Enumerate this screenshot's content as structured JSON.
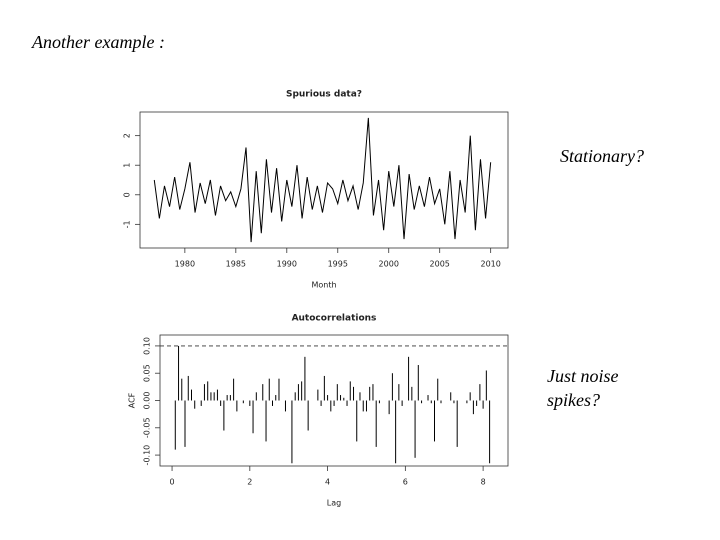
{
  "slide": {
    "heading": "Another example :",
    "note_top": "Stationary?",
    "note_bottom": [
      "Just noise",
      "spikes?"
    ]
  },
  "chart_data": [
    {
      "type": "line",
      "title": "Spurious data?",
      "x_label": "Month",
      "color": "#000000",
      "x": [
        1977,
        1977.5,
        1978,
        1978.5,
        1979,
        1979.5,
        1980,
        1980.5,
        1981,
        1981.5,
        1982,
        1982.5,
        1983,
        1983.5,
        1984,
        1984.5,
        1985,
        1985.5,
        1986,
        1986.5,
        1987,
        1987.5,
        1988,
        1988.5,
        1989,
        1989.5,
        1990,
        1990.5,
        1991,
        1991.5,
        1992,
        1992.5,
        1993,
        1993.5,
        1994,
        1994.5,
        1995,
        1995.5,
        1996,
        1996.5,
        1997,
        1997.5,
        1998,
        1998.5,
        1999,
        1999.5,
        2000,
        2000.5,
        2001,
        2001.5,
        2002,
        2002.5,
        2003,
        2003.5,
        2004,
        2004.5,
        2005,
        2005.5,
        2006,
        2006.5,
        2007,
        2007.5,
        2008,
        2008.5,
        2009,
        2009.5,
        2010
      ],
      "values": [
        0.5,
        -0.8,
        0.3,
        -0.4,
        0.6,
        -0.5,
        0.2,
        1.1,
        -0.6,
        0.4,
        -0.3,
        0.5,
        -0.7,
        0.3,
        -0.2,
        0.1,
        -0.4,
        0.2,
        1.6,
        -1.6,
        0.8,
        -1.3,
        1.2,
        -0.6,
        0.9,
        -0.9,
        0.5,
        -0.4,
        1.0,
        -0.8,
        0.6,
        -0.5,
        0.3,
        -0.6,
        0.4,
        0.2,
        -0.3,
        0.5,
        -0.2,
        0.3,
        -0.5,
        0.4,
        2.6,
        -0.7,
        0.5,
        -1.2,
        0.8,
        -0.4,
        1.0,
        -1.5,
        0.7,
        -0.5,
        0.3,
        -0.4,
        0.6,
        -0.3,
        0.2,
        -1.0,
        0.8,
        -1.5,
        0.5,
        -0.6,
        2.0,
        -1.2,
        1.2,
        -0.8,
        1.1
      ],
      "xlim": [
        1975.6,
        2011.7
      ],
      "xticks": [
        1980,
        1985,
        1990,
        1995,
        2000,
        2005,
        2010
      ],
      "ylim": [
        -1.8,
        2.8
      ],
      "yticks": [
        -1,
        0,
        1,
        2
      ]
    },
    {
      "type": "bar",
      "title": "Autocorrelations",
      "x_label": "Lag",
      "y_label": "ACF",
      "color": "#000000",
      "ci": 0.1,
      "x": [
        0.083,
        0.167,
        0.25,
        0.333,
        0.417,
        0.5,
        0.583,
        0.667,
        0.75,
        0.833,
        0.917,
        1,
        1.083,
        1.167,
        1.25,
        1.333,
        1.417,
        1.5,
        1.583,
        1.667,
        1.75,
        1.833,
        1.917,
        2,
        2.083,
        2.167,
        2.25,
        2.333,
        2.417,
        2.5,
        2.583,
        2.667,
        2.75,
        2.833,
        2.917,
        3,
        3.083,
        3.167,
        3.25,
        3.333,
        3.417,
        3.5,
        3.583,
        3.667,
        3.75,
        3.833,
        3.917,
        4,
        4.083,
        4.167,
        4.25,
        4.333,
        4.417,
        4.5,
        4.583,
        4.667,
        4.75,
        4.833,
        4.917,
        5,
        5.083,
        5.167,
        5.25,
        5.333,
        5.417,
        5.5,
        5.583,
        5.667,
        5.75,
        5.833,
        5.917,
        6,
        6.083,
        6.167,
        6.25,
        6.333,
        6.417,
        6.5,
        6.583,
        6.667,
        6.75,
        6.833,
        6.917,
        7,
        7.083,
        7.167,
        7.25,
        7.333,
        7.417,
        7.5,
        7.583,
        7.667,
        7.75,
        7.833,
        7.917,
        8,
        8.083,
        8.167
      ],
      "values": [
        -0.09,
        0.1,
        0.04,
        -0.085,
        0.045,
        0.02,
        -0.015,
        0.0,
        -0.01,
        0.03,
        0.035,
        0.015,
        0.015,
        0.02,
        -0.01,
        -0.055,
        0.01,
        0.01,
        0.04,
        -0.02,
        0.0,
        -0.005,
        0.0,
        -0.01,
        -0.06,
        0.015,
        0.0,
        0.03,
        -0.075,
        0.04,
        -0.01,
        0.01,
        0.04,
        0.0,
        -0.02,
        0.0,
        -0.115,
        0.015,
        0.03,
        0.035,
        0.08,
        -0.055,
        0.0,
        0.0,
        0.02,
        -0.01,
        0.045,
        0.01,
        -0.02,
        -0.01,
        0.03,
        0.01,
        0.005,
        -0.01,
        0.035,
        0.025,
        -0.075,
        0.015,
        -0.02,
        -0.02,
        0.025,
        0.03,
        -0.085,
        -0.005,
        0.0,
        0.0,
        -0.025,
        0.05,
        -0.115,
        0.03,
        -0.01,
        0.0,
        0.08,
        0.025,
        -0.105,
        0.065,
        -0.005,
        0.0,
        0.01,
        -0.005,
        -0.075,
        0.04,
        -0.005,
        0.0,
        0.0,
        0.015,
        -0.005,
        -0.085,
        0.0,
        0.0,
        -0.005,
        0.015,
        -0.025,
        -0.01,
        0.03,
        -0.015,
        0.055,
        -0.115
      ],
      "xlim": [
        -0.31,
        8.64
      ],
      "xticks": [
        0,
        2,
        4,
        6,
        8
      ],
      "ylim": [
        -0.12,
        0.12
      ],
      "yticks": [
        {
          "value": -0.1,
          "label": "-0.10"
        },
        -0.05,
        {
          "value": 0,
          "label": "0.00"
        },
        0.05,
        {
          "value": 0.1,
          "label": "0.10"
        }
      ]
    }
  ]
}
